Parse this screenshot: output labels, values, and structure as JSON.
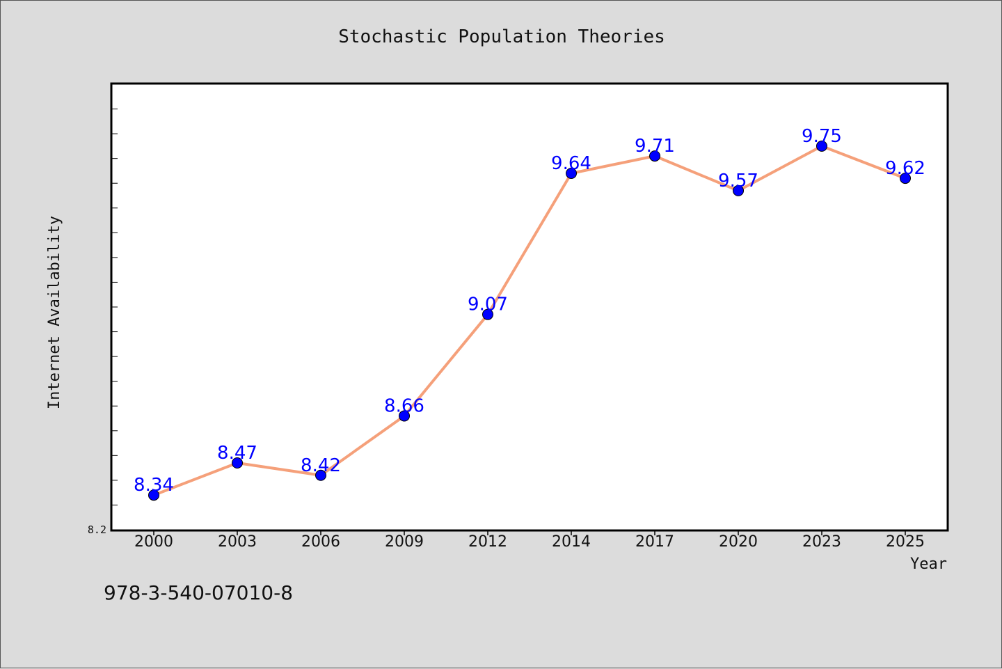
{
  "chart_data": {
    "type": "line",
    "title": "Stochastic Population Theories",
    "xlabel": "Year",
    "ylabel": "Internet Availability",
    "categories": [
      "2000",
      "2003",
      "2006",
      "2009",
      "2012",
      "2014",
      "2017",
      "2020",
      "2023",
      "2025"
    ],
    "series": [
      {
        "values": [
          8.34,
          8.47,
          8.42,
          8.66,
          9.07,
          9.64,
          9.71,
          9.57,
          9.75,
          9.62
        ]
      }
    ],
    "ylim": [
      8.2,
      10.0
    ],
    "y_tick_labels": [
      "8.2"
    ],
    "grid": false,
    "legend": "none",
    "colors": {
      "line": "#f5a07a",
      "marker": "#0000ff",
      "labels": "#0000ff",
      "background": "#dcdcdc",
      "plot_background": "#ffffff"
    }
  },
  "footer": {
    "isbn": "978-3-540-07010-8"
  }
}
